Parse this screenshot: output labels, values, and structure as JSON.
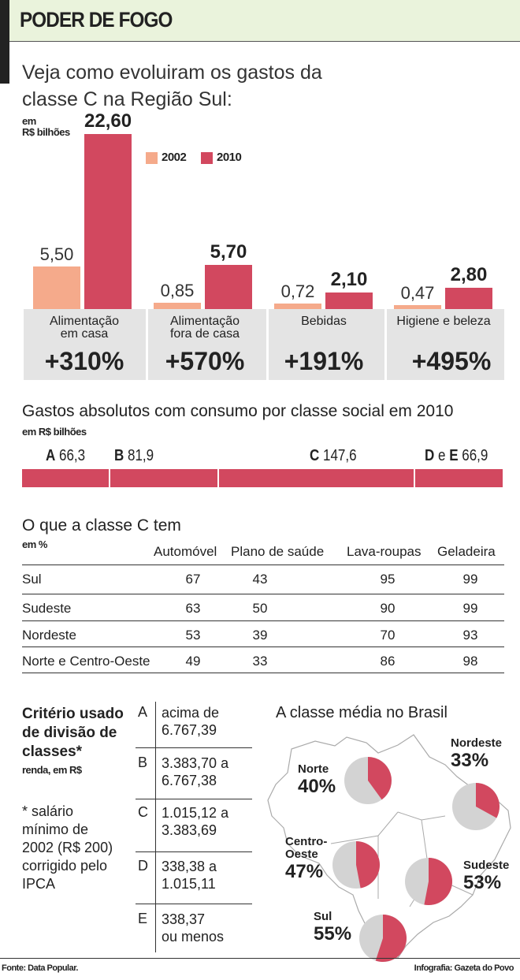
{
  "header": {
    "title": "PODER DE FOGO",
    "subtitle_line1": "Veja como evoluiram os gastos da",
    "subtitle_line2": "classe C na Região Sul:"
  },
  "colors": {
    "y2002": "#f5aa8b",
    "y2010": "#d2485f",
    "pie_rest": "#d3d3d3",
    "header_bg": "#eaf3dc",
    "panel_bg": "#e4e4e4"
  },
  "chart_data": [
    {
      "type": "bar",
      "title": "Veja como evoluiram os gastos da classe C na Região Sul:",
      "unit_line1": "em",
      "unit_line2": "R$ bilhões",
      "legend": [
        "2002",
        "2010"
      ],
      "legend_placement": "top-center",
      "categories": [
        "Alimentação em casa",
        "Alimentação fora de casa",
        "Bebidas",
        "Higiene e beleza"
      ],
      "category_lines": [
        [
          "Alimentação",
          "em casa"
        ],
        [
          "Alimentação",
          "fora de casa"
        ],
        [
          "Bebidas",
          ""
        ],
        [
          "Higiene e beleza",
          ""
        ]
      ],
      "series": [
        {
          "name": "2002",
          "values": [
            5.5,
            0.85,
            0.72,
            0.47
          ],
          "labels": [
            "5,50",
            "0,85",
            "0,72",
            "0,47"
          ]
        },
        {
          "name": "2010",
          "values": [
            22.6,
            5.7,
            2.1,
            2.8
          ],
          "labels": [
            "22,60",
            "5,70",
            "2,10",
            "2,80"
          ]
        }
      ],
      "growth": [
        "+310%",
        "+570%",
        "+191%",
        "+495%"
      ]
    },
    {
      "type": "bar",
      "title": "Gastos absolutos com consumo por classe social em 2010",
      "unit": "em R$ bilhões",
      "orientation": "stacked-horizontal",
      "categories": [
        {
          "letter": "A",
          "sep": "",
          "letter2": "",
          "value": 66.3,
          "label": "66,3"
        },
        {
          "letter": "B",
          "sep": "",
          "letter2": "",
          "value": 81.9,
          "label": "81,9"
        },
        {
          "letter": "C",
          "sep": "",
          "letter2": "",
          "value": 147.6,
          "label": "147,6"
        },
        {
          "letter": "D",
          "sep": " e ",
          "letter2": "E",
          "value": 66.9,
          "label": "66,9"
        }
      ]
    },
    {
      "type": "table",
      "title": "O que a classe C tem",
      "unit": "em %",
      "columns": [
        "Automóvel",
        "Plano de saúde",
        "Lava-roupas",
        "Geladeira"
      ],
      "rows": [
        {
          "region": "Sul",
          "values": [
            "67",
            "43",
            "95",
            "99"
          ]
        },
        {
          "region": "Sudeste",
          "values": [
            "63",
            "50",
            "90",
            "99"
          ]
        },
        {
          "region": "Nordeste",
          "values": [
            "53",
            "39",
            "70",
            "93"
          ]
        },
        {
          "region": "Norte e Centro-Oeste",
          "values": [
            "49",
            "33",
            "86",
            "98"
          ]
        }
      ]
    },
    {
      "type": "pie",
      "title": "A classe média no Brasil",
      "regions": [
        {
          "name": "Norte",
          "name_lines": [
            "Norte",
            ""
          ],
          "value": 40,
          "label": "40%"
        },
        {
          "name": "Nordeste",
          "name_lines": [
            "Nordeste",
            ""
          ],
          "value": 33,
          "label": "33%"
        },
        {
          "name": "Centro-Oeste",
          "name_lines": [
            "Centro-",
            "Oeste"
          ],
          "value": 47,
          "label": "47%"
        },
        {
          "name": "Sudeste",
          "name_lines": [
            "Sudeste",
            ""
          ],
          "value": 53,
          "label": "53%"
        },
        {
          "name": "Sul",
          "name_lines": [
            "Sul",
            ""
          ],
          "value": 55,
          "label": "55%"
        }
      ]
    }
  ],
  "criteria": {
    "title_lines": [
      "Critério usado",
      "de divisão de",
      "classes*"
    ],
    "unit": "renda, em R$",
    "note_lines": [
      "* salário",
      "mínimo de",
      "2002 (R$ 200)",
      "corrigido pelo",
      "IPCA"
    ],
    "rows": [
      {
        "letter": "A",
        "l1": "acima de",
        "l2": "6.767,39"
      },
      {
        "letter": "B",
        "l1": "3.383,70 a",
        "l2": "6.767,38"
      },
      {
        "letter": "C",
        "l1": "1.015,12 a",
        "l2": "3.383,69"
      },
      {
        "letter": "D",
        "l1": "338,38 a",
        "l2": "1.015,11"
      },
      {
        "letter": "E",
        "l1": "338,37",
        "l2": "ou menos"
      }
    ]
  },
  "footer": {
    "source": "Fonte: Data Popular.",
    "credit": "Infografia: Gazeta do Povo"
  }
}
